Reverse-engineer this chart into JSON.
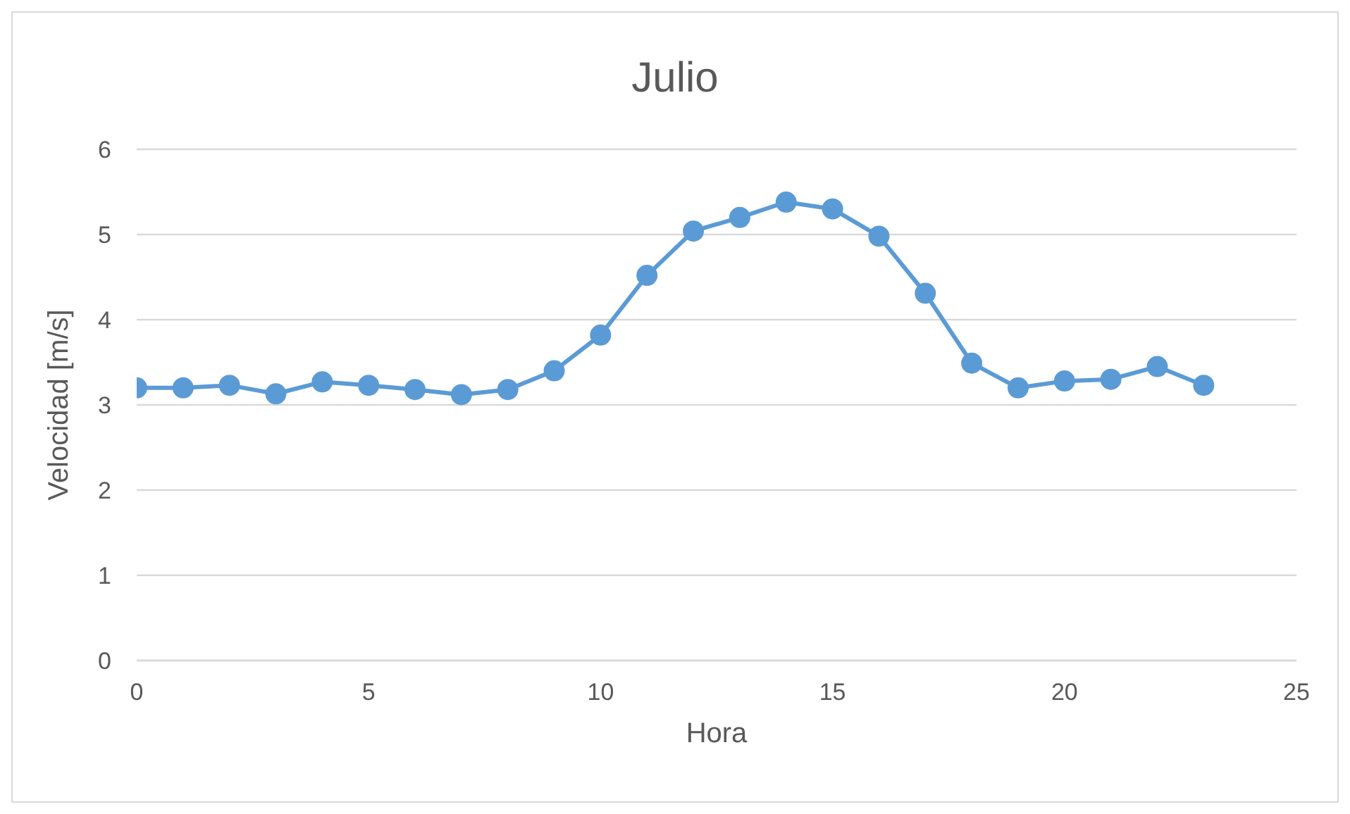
{
  "chart_data": {
    "type": "line",
    "title": "Julio",
    "xlabel": "Hora",
    "ylabel": "Velocidad [m/s]",
    "x": [
      0,
      1,
      2,
      3,
      4,
      5,
      6,
      7,
      8,
      9,
      10,
      11,
      12,
      13,
      14,
      15,
      16,
      17,
      18,
      19,
      20,
      21,
      22,
      23
    ],
    "series": [
      {
        "color": "#5b9bd5",
        "values": [
          3.2,
          3.2,
          3.23,
          3.13,
          3.27,
          3.23,
          3.18,
          3.12,
          3.18,
          3.4,
          3.82,
          4.52,
          5.04,
          5.2,
          5.38,
          5.3,
          4.98,
          4.31,
          3.49,
          3.2,
          3.28,
          3.3,
          3.45,
          3.23
        ]
      }
    ],
    "xlim": [
      0,
      25
    ],
    "xticks": [
      0,
      5,
      10,
      15,
      20,
      25
    ],
    "ylim": [
      0,
      6
    ],
    "yticks": [
      0,
      1,
      2,
      3,
      4,
      5,
      6
    ],
    "grid": "y",
    "legend": false,
    "marker": "circle",
    "line_style": "solid"
  }
}
